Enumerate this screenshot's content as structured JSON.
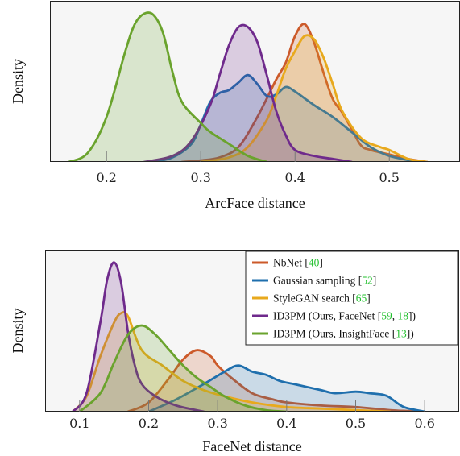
{
  "chart_data": [
    {
      "type": "area",
      "xlabel": "ArcFace distance",
      "ylabel": "Density",
      "xlim": [
        0.14,
        0.575
      ],
      "xticks": [
        0.2,
        0.3,
        0.4,
        0.5
      ],
      "xtick_labels": [
        "0.2",
        "0.3",
        "0.4",
        "0.5"
      ],
      "ylim": [
        0,
        1.0
      ],
      "yticks_shown": false,
      "legend": "none",
      "series": [
        {
          "key": "nbnet",
          "color": "#cc5a2a",
          "points": [
            [
              0.28,
              0
            ],
            [
              0.3,
              0.01
            ],
            [
              0.32,
              0.03
            ],
            [
              0.34,
              0.1
            ],
            [
              0.36,
              0.3
            ],
            [
              0.38,
              0.55
            ],
            [
              0.39,
              0.66
            ],
            [
              0.4,
              0.84
            ],
            [
              0.41,
              0.92
            ],
            [
              0.42,
              0.8
            ],
            [
              0.43,
              0.6
            ],
            [
              0.44,
              0.42
            ],
            [
              0.45,
              0.33
            ],
            [
              0.46,
              0.22
            ],
            [
              0.47,
              0.11
            ],
            [
              0.48,
              0.08
            ],
            [
              0.5,
              0.05
            ],
            [
              0.52,
              0.02
            ],
            [
              0.54,
              0
            ]
          ]
        },
        {
          "key": "gaussian",
          "color": "#1f6fad",
          "points": [
            [
              0.25,
              0
            ],
            [
              0.27,
              0.03
            ],
            [
              0.29,
              0.12
            ],
            [
              0.3,
              0.25
            ],
            [
              0.31,
              0.4
            ],
            [
              0.32,
              0.46
            ],
            [
              0.33,
              0.48
            ],
            [
              0.34,
              0.53
            ],
            [
              0.35,
              0.58
            ],
            [
              0.36,
              0.52
            ],
            [
              0.37,
              0.44
            ],
            [
              0.38,
              0.45
            ],
            [
              0.39,
              0.5
            ],
            [
              0.4,
              0.47
            ],
            [
              0.42,
              0.38
            ],
            [
              0.44,
              0.3
            ],
            [
              0.46,
              0.2
            ],
            [
              0.48,
              0.1
            ],
            [
              0.5,
              0.04
            ],
            [
              0.53,
              0
            ]
          ]
        },
        {
          "key": "stylegan",
          "color": "#e8a91d",
          "points": [
            [
              0.3,
              0
            ],
            [
              0.33,
              0.03
            ],
            [
              0.35,
              0.1
            ],
            [
              0.37,
              0.28
            ],
            [
              0.38,
              0.44
            ],
            [
              0.39,
              0.62
            ],
            [
              0.4,
              0.74
            ],
            [
              0.41,
              0.84
            ],
            [
              0.42,
              0.82
            ],
            [
              0.43,
              0.7
            ],
            [
              0.44,
              0.52
            ],
            [
              0.45,
              0.34
            ],
            [
              0.47,
              0.16
            ],
            [
              0.49,
              0.1
            ],
            [
              0.5,
              0.08
            ],
            [
              0.52,
              0.02
            ],
            [
              0.54,
              0
            ]
          ]
        },
        {
          "key": "id3pm_facenet",
          "color": "#6f2a8c",
          "points": [
            [
              0.24,
              0
            ],
            [
              0.27,
              0.04
            ],
            [
              0.29,
              0.14
            ],
            [
              0.31,
              0.38
            ],
            [
              0.32,
              0.58
            ],
            [
              0.33,
              0.78
            ],
            [
              0.34,
              0.9
            ],
            [
              0.35,
              0.9
            ],
            [
              0.36,
              0.8
            ],
            [
              0.37,
              0.58
            ],
            [
              0.38,
              0.34
            ],
            [
              0.39,
              0.18
            ],
            [
              0.4,
              0.08
            ],
            [
              0.42,
              0.04
            ],
            [
              0.44,
              0.02
            ],
            [
              0.46,
              0
            ]
          ]
        },
        {
          "key": "id3pm_insightface",
          "color": "#6aa32d",
          "points": [
            [
              0.16,
              0
            ],
            [
              0.18,
              0.06
            ],
            [
              0.2,
              0.3
            ],
            [
              0.22,
              0.74
            ],
            [
              0.23,
              0.92
            ],
            [
              0.24,
              0.99
            ],
            [
              0.25,
              0.98
            ],
            [
              0.26,
              0.86
            ],
            [
              0.27,
              0.6
            ],
            [
              0.28,
              0.4
            ],
            [
              0.3,
              0.26
            ],
            [
              0.31,
              0.2
            ],
            [
              0.33,
              0.12
            ],
            [
              0.35,
              0.04
            ],
            [
              0.37,
              0
            ]
          ]
        }
      ]
    },
    {
      "type": "area",
      "xlabel": "FaceNet distance",
      "ylabel": "Density",
      "xlim": [
        0.05,
        0.65
      ],
      "xticks": [
        0.1,
        0.2,
        0.3,
        0.4,
        0.5,
        0.6
      ],
      "xtick_labels": [
        "0.1",
        "0.2",
        "0.3",
        "0.4",
        "0.5",
        "0.6"
      ],
      "ylim": [
        0,
        1.0
      ],
      "yticks_shown": false,
      "legend": "top-right",
      "series": [
        {
          "key": "nbnet",
          "color": "#cc5a2a",
          "points": [
            [
              0.17,
              0
            ],
            [
              0.2,
              0.06
            ],
            [
              0.23,
              0.22
            ],
            [
              0.25,
              0.34
            ],
            [
              0.27,
              0.4
            ],
            [
              0.29,
              0.36
            ],
            [
              0.3,
              0.3
            ],
            [
              0.32,
              0.22
            ],
            [
              0.35,
              0.12
            ],
            [
              0.38,
              0.08
            ],
            [
              0.4,
              0.06
            ],
            [
              0.45,
              0.04
            ],
            [
              0.5,
              0.03
            ],
            [
              0.55,
              0.01
            ],
            [
              0.6,
              0
            ]
          ]
        },
        {
          "key": "gaussian",
          "color": "#1f6fad",
          "points": [
            [
              0.2,
              0
            ],
            [
              0.24,
              0.08
            ],
            [
              0.28,
              0.18
            ],
            [
              0.31,
              0.26
            ],
            [
              0.33,
              0.3
            ],
            [
              0.35,
              0.26
            ],
            [
              0.37,
              0.24
            ],
            [
              0.39,
              0.2
            ],
            [
              0.41,
              0.18
            ],
            [
              0.43,
              0.16
            ],
            [
              0.45,
              0.14
            ],
            [
              0.47,
              0.12
            ],
            [
              0.5,
              0.13
            ],
            [
              0.52,
              0.12
            ],
            [
              0.54,
              0.11
            ],
            [
              0.55,
              0.09
            ],
            [
              0.57,
              0.03
            ],
            [
              0.6,
              0
            ]
          ]
        },
        {
          "key": "stylegan",
          "color": "#e8a91d",
          "points": [
            [
              0.09,
              0
            ],
            [
              0.11,
              0.1
            ],
            [
              0.13,
              0.36
            ],
            [
              0.15,
              0.58
            ],
            [
              0.16,
              0.64
            ],
            [
              0.17,
              0.62
            ],
            [
              0.19,
              0.4
            ],
            [
              0.22,
              0.3
            ],
            [
              0.25,
              0.2
            ],
            [
              0.28,
              0.14
            ],
            [
              0.31,
              0.1
            ],
            [
              0.35,
              0.06
            ],
            [
              0.4,
              0.03
            ],
            [
              0.45,
              0.02
            ],
            [
              0.5,
              0.01
            ],
            [
              0.55,
              0
            ]
          ]
        },
        {
          "key": "id3pm_facenet",
          "color": "#6f2a8c",
          "points": [
            [
              0.09,
              0
            ],
            [
              0.11,
              0.12
            ],
            [
              0.13,
              0.58
            ],
            [
              0.14,
              0.86
            ],
            [
              0.15,
              0.97
            ],
            [
              0.16,
              0.84
            ],
            [
              0.17,
              0.52
            ],
            [
              0.18,
              0.3
            ],
            [
              0.19,
              0.18
            ],
            [
              0.21,
              0.1
            ],
            [
              0.24,
              0.04
            ],
            [
              0.28,
              0
            ]
          ]
        },
        {
          "key": "id3pm_insightface",
          "color": "#6aa32d",
          "points": [
            [
              0.1,
              0
            ],
            [
              0.13,
              0.12
            ],
            [
              0.15,
              0.32
            ],
            [
              0.17,
              0.5
            ],
            [
              0.19,
              0.56
            ],
            [
              0.21,
              0.5
            ],
            [
              0.23,
              0.4
            ],
            [
              0.25,
              0.3
            ],
            [
              0.27,
              0.22
            ],
            [
              0.29,
              0.16
            ],
            [
              0.31,
              0.1
            ],
            [
              0.34,
              0.04
            ],
            [
              0.37,
              0.01
            ],
            [
              0.4,
              0
            ]
          ]
        }
      ],
      "legend_entries": [
        {
          "key": "nbnet",
          "text": "NbNet [",
          "refs": [
            "40"
          ],
          "suffix": "]"
        },
        {
          "key": "gaussian",
          "text": "Gaussian sampling [",
          "refs": [
            "52"
          ],
          "suffix": "]"
        },
        {
          "key": "stylegan",
          "text": "StyleGAN search [",
          "refs": [
            "65"
          ],
          "suffix": "]"
        },
        {
          "key": "id3pm_facenet",
          "text": "ID3PM (Ours, FaceNet [",
          "refs": [
            "59",
            "18"
          ],
          "suffix": "])"
        },
        {
          "key": "id3pm_insightface",
          "text": "ID3PM (Ours, InsightFace [",
          "refs": [
            "13"
          ],
          "suffix": "])"
        }
      ]
    }
  ],
  "colors": {
    "plot_background": "#f6f6f6",
    "axis": "#222222",
    "citation": "#22c02e"
  }
}
